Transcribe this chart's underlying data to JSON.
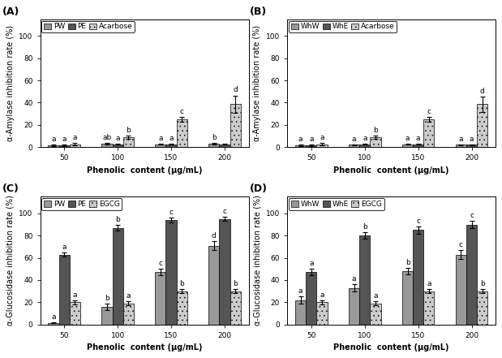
{
  "panels": [
    "A",
    "B",
    "C",
    "D"
  ],
  "x_labels": [
    "50",
    "100",
    "150",
    "200"
  ],
  "x_label": "Phenolic  content (μg/mL)",
  "A": {
    "title": "(A)",
    "ylabel": "α-Amylase inhibition rate (%)",
    "legend": [
      "PW",
      "PE",
      "Acarbose"
    ],
    "ylim": [
      0,
      115
    ],
    "yticks": [
      0,
      20,
      40,
      60,
      80,
      100
    ],
    "values": {
      "PW": [
        1.5,
        3.0,
        2.5,
        3.0
      ],
      "PE": [
        1.5,
        2.5,
        2.5,
        2.5
      ],
      "Acarbose": [
        2.5,
        9.0,
        25.0,
        38.5
      ]
    },
    "errors": {
      "PW": [
        0.4,
        0.5,
        0.4,
        0.4
      ],
      "PE": [
        0.4,
        0.4,
        0.4,
        0.4
      ],
      "Acarbose": [
        1.0,
        1.5,
        2.0,
        8.0
      ]
    },
    "letters": {
      "PW": [
        "a",
        "ab",
        "a",
        "b"
      ],
      "PE": [
        "a",
        "a",
        "a",
        ""
      ],
      "Acarbose": [
        "a",
        "b",
        "c",
        "d"
      ]
    }
  },
  "B": {
    "title": "(B)",
    "ylabel": "α-Amylase inhibition rate (%)",
    "legend": [
      "WhW",
      "WhE",
      "Acarbose"
    ],
    "ylim": [
      0,
      115
    ],
    "yticks": [
      0,
      20,
      40,
      60,
      80,
      100
    ],
    "values": {
      "WhW": [
        1.5,
        2.0,
        2.5,
        2.0
      ],
      "WhE": [
        1.5,
        2.5,
        2.5,
        2.0
      ],
      "Acarbose": [
        2.5,
        9.0,
        25.0,
        38.5
      ]
    },
    "errors": {
      "WhW": [
        0.4,
        0.4,
        0.4,
        0.4
      ],
      "WhE": [
        0.4,
        0.4,
        0.4,
        0.4
      ],
      "Acarbose": [
        1.0,
        1.5,
        2.0,
        7.0
      ]
    },
    "letters": {
      "WhW": [
        "a",
        "a",
        "a",
        "a"
      ],
      "WhE": [
        "a",
        "a",
        "a",
        "a"
      ],
      "Acarbose": [
        "a",
        "b",
        "c",
        "d"
      ]
    }
  },
  "C": {
    "title": "(C)",
    "ylabel": "α-Glucosidase inhibition rate (%)",
    "legend": [
      "PW",
      "PE",
      "EGCG"
    ],
    "ylim": [
      0,
      115
    ],
    "yticks": [
      0,
      20,
      40,
      60,
      80,
      100
    ],
    "values": {
      "PW": [
        1.5,
        16.0,
        47.0,
        71.0
      ],
      "PE": [
        63.0,
        87.0,
        94.0,
        95.0
      ],
      "EGCG": [
        20.0,
        19.0,
        30.0,
        30.0
      ]
    },
    "errors": {
      "PW": [
        0.5,
        3.0,
        3.0,
        4.0
      ],
      "PE": [
        2.0,
        2.5,
        2.0,
        2.0
      ],
      "EGCG": [
        2.0,
        2.0,
        2.0,
        2.0
      ]
    },
    "letters": {
      "PW": [
        "a",
        "b",
        "c",
        "d"
      ],
      "PE": [
        "a",
        "b",
        "c",
        "c"
      ],
      "EGCG": [
        "a",
        "a",
        "b",
        "b"
      ]
    }
  },
  "D": {
    "title": "(D)",
    "ylabel": "α-Glucosidase inhibition rate (%)",
    "legend": [
      "WhW",
      "WhE",
      "EGCG"
    ],
    "ylim": [
      0,
      115
    ],
    "yticks": [
      0,
      20,
      40,
      60,
      80,
      100
    ],
    "values": {
      "WhW": [
        22.0,
        33.0,
        48.0,
        63.0
      ],
      "WhE": [
        47.0,
        80.0,
        85.0,
        90.0
      ],
      "EGCG": [
        20.0,
        19.0,
        30.0,
        30.0
      ]
    },
    "errors": {
      "WhW": [
        3.0,
        3.0,
        3.0,
        4.0
      ],
      "WhE": [
        3.0,
        3.0,
        3.0,
        3.0
      ],
      "EGCG": [
        2.0,
        2.0,
        2.0,
        2.0
      ]
    },
    "letters": {
      "WhW": [
        "a",
        "a",
        "b",
        "c"
      ],
      "WhE": [
        "a",
        "b",
        "c",
        "c"
      ],
      "EGCG": [
        "a",
        "a",
        "a",
        "b"
      ]
    }
  },
  "bar_colors": [
    "#999999",
    "#555555",
    "#cccccc"
  ],
  "bar_width": 0.2,
  "hatch_pattern": "...",
  "letter_fontsize": 6.5,
  "axis_fontsize": 7,
  "legend_fontsize": 6.5,
  "tick_fontsize": 6.5
}
